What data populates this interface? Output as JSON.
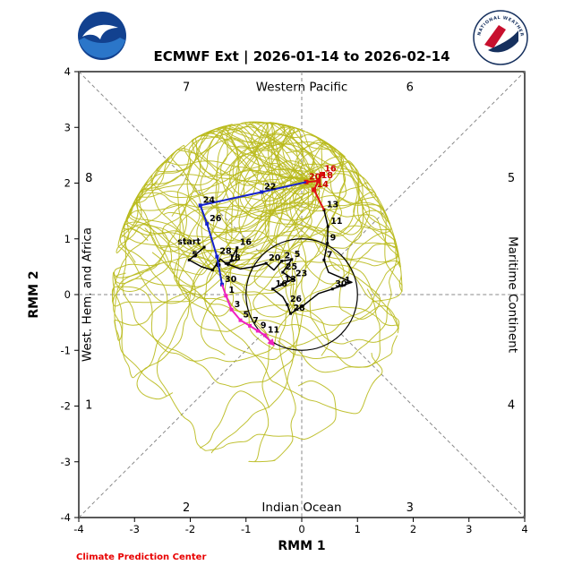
{
  "header": {
    "title": "ECMWF Ext | 2026-01-14 to 2026-02-14",
    "noaa_logo_name": "NOAA",
    "nws_ring_text": "NATIONAL WEATHER SERVICE"
  },
  "footer": {
    "credit": "Climate Prediction Center"
  },
  "chart_data": {
    "type": "line",
    "title": "ECMWF Ext | 2026-01-14 to 2026-02-14",
    "xlabel": "RMM 1",
    "ylabel": "RMM 2",
    "xlim": [
      -4,
      4
    ],
    "ylim": [
      -4,
      4
    ],
    "x_ticks": [
      -4,
      -3,
      -2,
      -1,
      0,
      1,
      2,
      3,
      4
    ],
    "y_ticks": [
      -4,
      -3,
      -2,
      -1,
      0,
      1,
      2,
      3,
      4
    ],
    "unit_circle_radius": 1,
    "grid": "dashed-crosshair-and-diagonals",
    "legend_position": "none",
    "phase_labels": [
      {
        "text": "7",
        "x": -2.07,
        "y": 3.72
      },
      {
        "text": "Western Pacific",
        "x": 0,
        "y": 3.72
      },
      {
        "text": "6",
        "x": 1.94,
        "y": 3.72
      },
      {
        "text": "8",
        "x": -3.82,
        "y": 2.09
      },
      {
        "text": "5",
        "x": 3.76,
        "y": 2.09
      },
      {
        "text": "1",
        "x": -3.82,
        "y": -1.98
      },
      {
        "text": "4",
        "x": 3.76,
        "y": -1.98
      },
      {
        "text": "2",
        "x": -2.07,
        "y": -3.82
      },
      {
        "text": "Indian Ocean",
        "x": 0,
        "y": -3.82
      },
      {
        "text": "3",
        "x": 1.94,
        "y": -3.82
      }
    ],
    "side_labels": [
      {
        "text": "West. Hem. and Africa",
        "x": -3.78,
        "y": 0,
        "rotation": -90
      },
      {
        "text": "Maritime Continent",
        "x": 3.72,
        "y": 0,
        "rotation": 90
      }
    ],
    "series": [
      {
        "name": "observed",
        "color": "#000000",
        "label_color": "#000000",
        "width": 1.5,
        "marker_size": 3,
        "points": [
          [
            -1.75,
            0.85,
            "start"
          ],
          [
            -2.02,
            0.62,
            "5"
          ],
          [
            -1.8,
            0.5
          ],
          [
            -1.6,
            0.44,
            "6"
          ],
          [
            -1.46,
            0.64
          ],
          [
            -1.32,
            0.52
          ],
          [
            -1.16,
            0.84,
            "16"
          ],
          [
            -1.18,
            0.62
          ],
          [
            -1.36,
            0.56,
            "18"
          ],
          [
            -1.1,
            0.46
          ],
          [
            -0.86,
            0.5
          ],
          [
            -0.64,
            0.56,
            "20"
          ],
          [
            -0.5,
            0.44
          ],
          [
            -0.36,
            0.6,
            "2"
          ],
          [
            -0.18,
            0.63,
            "5"
          ],
          [
            -0.34,
            0.4,
            "25"
          ],
          [
            -0.16,
            0.28,
            "23"
          ],
          [
            -0.36,
            0.18,
            "13"
          ],
          [
            -0.52,
            0.1,
            "16"
          ],
          [
            -0.34,
            -0.04
          ],
          [
            -0.26,
            -0.18,
            "26"
          ],
          [
            -0.2,
            -0.34,
            "28"
          ],
          [
            0.05,
            -0.18
          ],
          [
            0.3,
            0.02
          ],
          [
            0.55,
            0.1,
            "30"
          ],
          [
            0.72,
            0.16,
            "1"
          ],
          [
            0.9,
            0.22
          ],
          [
            0.48,
            0.4
          ],
          [
            0.4,
            0.62,
            "7"
          ],
          [
            0.46,
            0.92,
            "9"
          ],
          [
            0.47,
            1.22,
            "11"
          ],
          [
            0.4,
            1.52,
            "13"
          ]
        ]
      },
      {
        "name": "forecast-early",
        "color": "#dd1111",
        "label_color": "#cc0000",
        "width": 2,
        "marker_size": 5,
        "points": [
          [
            0.4,
            1.52
          ],
          [
            0.22,
            1.88,
            "14"
          ],
          [
            0.36,
            2.16,
            "16"
          ],
          [
            0.3,
            2.04,
            "18"
          ],
          [
            0.08,
            2.02,
            "20"
          ]
        ]
      },
      {
        "name": "forecast-mid",
        "color": "#1522cc",
        "label_color": "#000000",
        "width": 2,
        "marker_size": 4,
        "points": [
          [
            0.08,
            2.02
          ],
          [
            -0.72,
            1.84,
            "22"
          ],
          [
            -1.82,
            1.6,
            "24"
          ],
          [
            -1.7,
            1.27,
            "26"
          ],
          [
            -1.52,
            0.68,
            "28"
          ],
          [
            -1.43,
            0.18,
            "30"
          ]
        ]
      },
      {
        "name": "forecast-late",
        "color": "#f020c0",
        "label_color": "#000000",
        "width": 2,
        "marker_size": 4,
        "arrow_end": true,
        "points": [
          [
            -1.43,
            0.18
          ],
          [
            -1.36,
            -0.02,
            "1"
          ],
          [
            -1.26,
            -0.27,
            "3"
          ],
          [
            -1.1,
            -0.46,
            "5"
          ],
          [
            -0.93,
            -0.56,
            "7"
          ],
          [
            -0.79,
            -0.65,
            "9"
          ],
          [
            -0.66,
            -0.73,
            "11"
          ],
          [
            -0.57,
            -0.83
          ]
        ]
      }
    ],
    "ensemble": {
      "name": "ECMWF extended ensemble members",
      "color": "#b9ba1c",
      "opacity": 0.9,
      "count": 50,
      "steps": 46,
      "seed": 20260114,
      "start": [
        0.25,
        1.95
      ],
      "center": [
        -0.8,
        0.05
      ],
      "rx": 2.6,
      "ry": 3.05
    }
  }
}
